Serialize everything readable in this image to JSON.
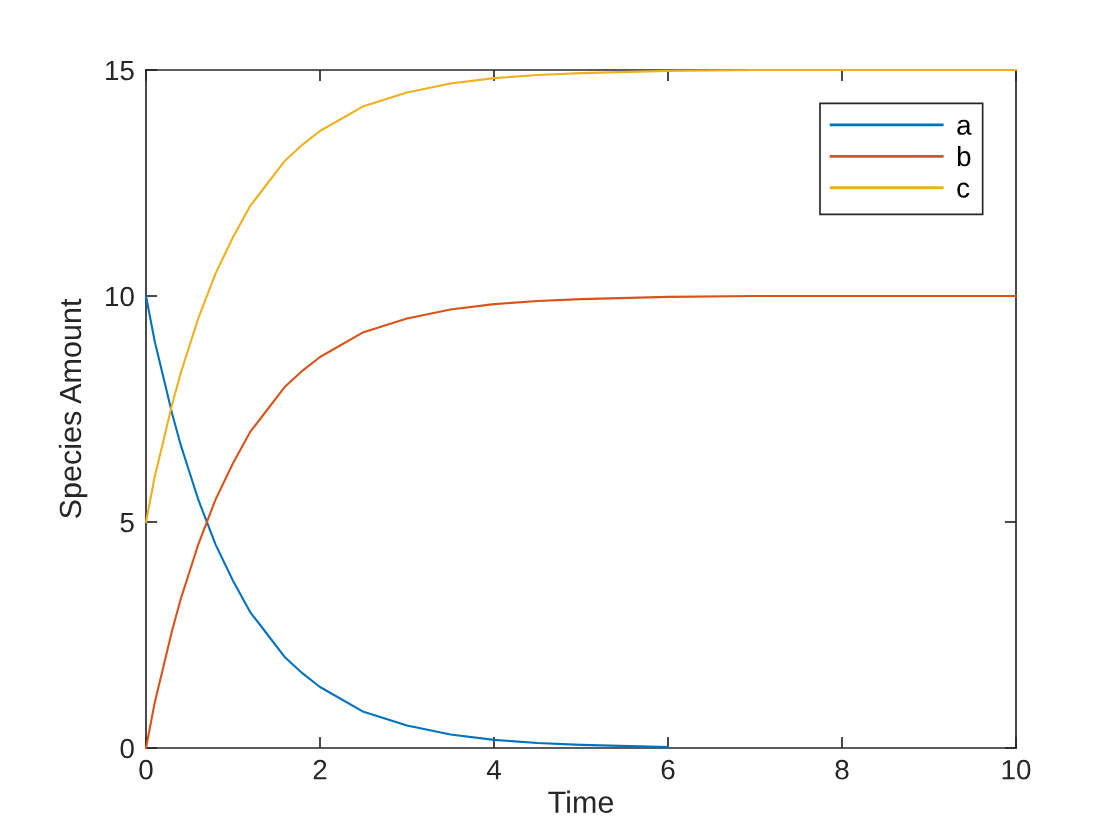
{
  "chart_data": {
    "type": "line",
    "xlabel": "Time",
    "ylabel": "Species Amount",
    "x": [
      0,
      0.1,
      0.2,
      0.3,
      0.4,
      0.5,
      0.6,
      0.8,
      1,
      1.2,
      1.4,
      1.6,
      1.8,
      2,
      2.5,
      3,
      3.5,
      4,
      4.5,
      5,
      6,
      7,
      8,
      9,
      10
    ],
    "series": [
      {
        "name": "a",
        "color": "#0072bd",
        "values": [
          10,
          9.0,
          8.2,
          7.4,
          6.7,
          6.1,
          5.5,
          4.5,
          3.7,
          3.0,
          2.5,
          2.0,
          1.65,
          1.35,
          0.8,
          0.5,
          0.3,
          0.18,
          0.11,
          0.07,
          0.02,
          null,
          null,
          null,
          null
        ]
      },
      {
        "name": "b",
        "color": "#d95319",
        "values": [
          0,
          1.0,
          1.8,
          2.6,
          3.3,
          3.9,
          4.5,
          5.5,
          6.3,
          7.0,
          7.5,
          8.0,
          8.35,
          8.65,
          9.2,
          9.5,
          9.7,
          9.82,
          9.89,
          9.93,
          9.98,
          10,
          10,
          10,
          10
        ]
      },
      {
        "name": "c",
        "color": "#edb120",
        "values": [
          5,
          6.0,
          6.8,
          7.6,
          8.3,
          8.9,
          9.5,
          10.5,
          11.3,
          12.0,
          12.5,
          13.0,
          13.35,
          13.65,
          14.2,
          14.5,
          14.7,
          14.82,
          14.89,
          14.93,
          14.98,
          15,
          15,
          15,
          15
        ]
      }
    ],
    "xlim": [
      0,
      10
    ],
    "xticks": [
      0,
      2,
      4,
      6,
      8,
      10
    ],
    "ylim": [
      0,
      15
    ],
    "yticks": [
      0,
      5,
      10,
      15
    ],
    "grid": false,
    "legend": "top right",
    "marker": "none",
    "line_style": "solid"
  }
}
